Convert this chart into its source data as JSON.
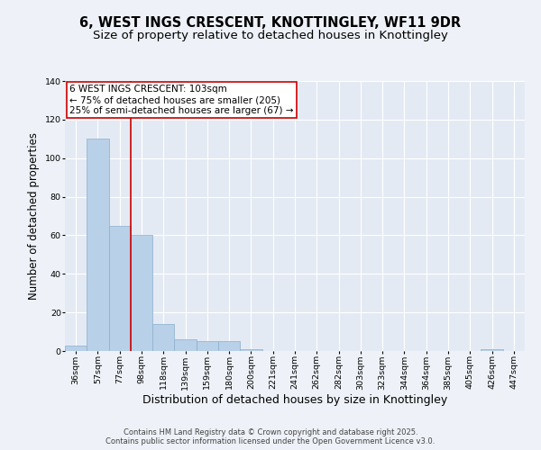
{
  "title": "6, WEST INGS CRESCENT, KNOTTINGLEY, WF11 9DR",
  "subtitle": "Size of property relative to detached houses in Knottingley",
  "xlabel": "Distribution of detached houses by size in Knottingley",
  "ylabel": "Number of detached properties",
  "categories": [
    "36sqm",
    "57sqm",
    "77sqm",
    "98sqm",
    "118sqm",
    "139sqm",
    "159sqm",
    "180sqm",
    "200sqm",
    "221sqm",
    "241sqm",
    "262sqm",
    "282sqm",
    "303sqm",
    "323sqm",
    "344sqm",
    "364sqm",
    "385sqm",
    "405sqm",
    "426sqm",
    "447sqm"
  ],
  "values": [
    3,
    110,
    65,
    60,
    14,
    6,
    5,
    5,
    1,
    0,
    0,
    0,
    0,
    0,
    0,
    0,
    0,
    0,
    0,
    1,
    0
  ],
  "bar_color": "#b8d0e8",
  "bar_edge_color": "#8ab0cc",
  "annotation_box_color": "#cc0000",
  "vline_color": "#cc0000",
  "vline_x": 2.5,
  "annotation_line1": "6 WEST INGS CRESCENT: 103sqm",
  "annotation_line2": "← 75% of detached houses are smaller (205)",
  "annotation_line3": "25% of semi-detached houses are larger (67) →",
  "ylim": [
    0,
    140
  ],
  "yticks": [
    0,
    20,
    40,
    60,
    80,
    100,
    120,
    140
  ],
  "footer_line1": "Contains HM Land Registry data © Crown copyright and database right 2025.",
  "footer_line2": "Contains public sector information licensed under the Open Government Licence v3.0.",
  "bg_color": "#eef2f8",
  "plot_bg_color": "#e4eaf4",
  "grid_color": "#ffffff",
  "title_fontsize": 10.5,
  "subtitle_fontsize": 9.5,
  "annotation_fontsize": 7.5,
  "tick_fontsize": 6.8,
  "ylabel_fontsize": 8.5,
  "xlabel_fontsize": 9.0,
  "footer_fontsize": 6.0
}
